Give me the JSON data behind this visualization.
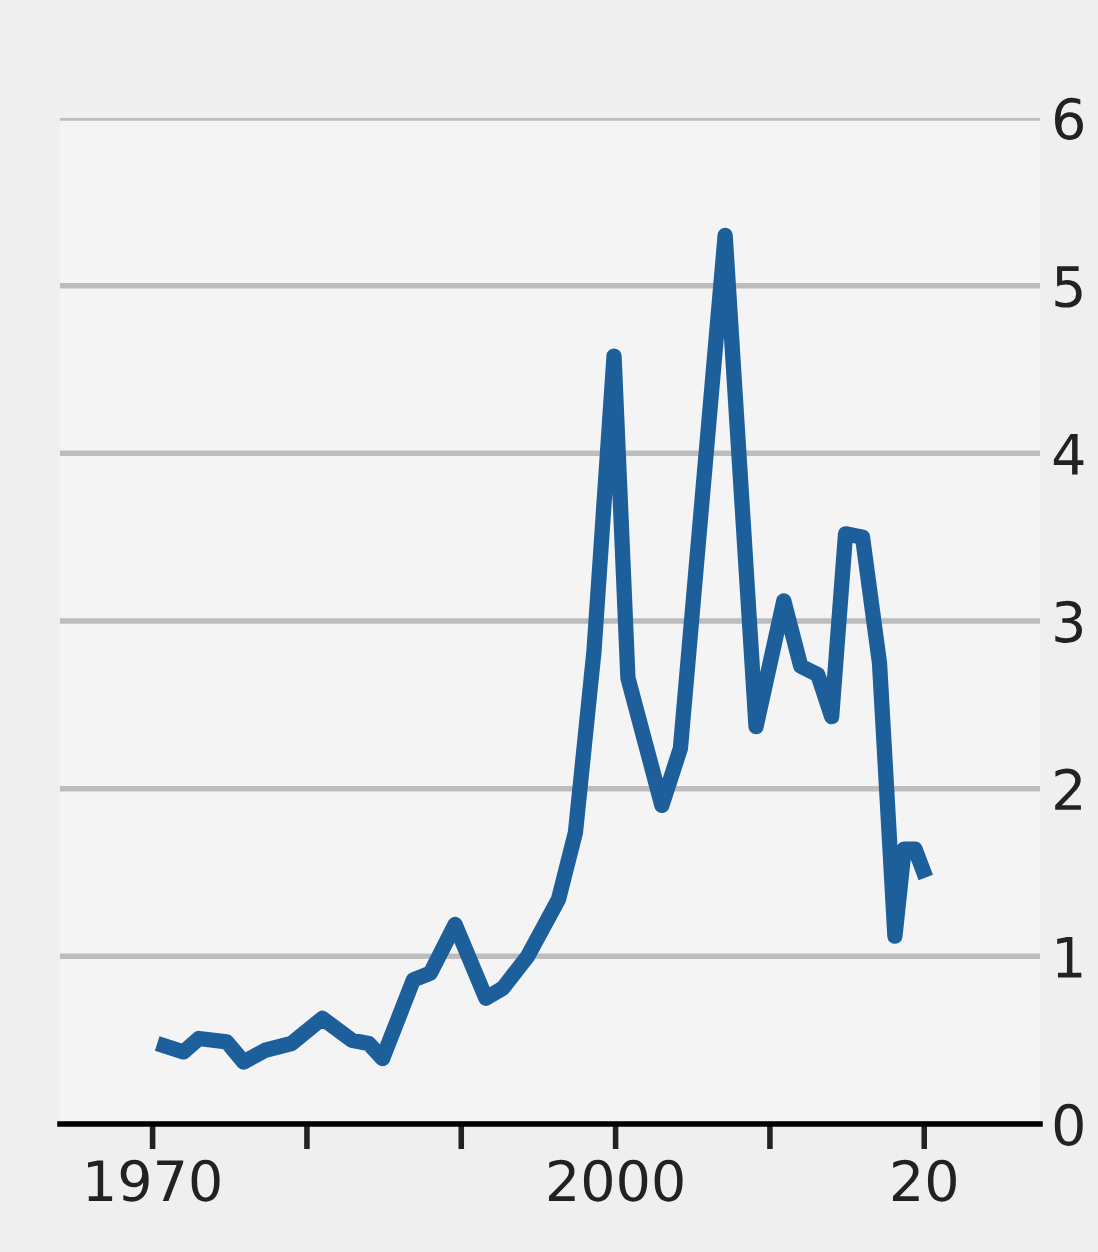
{
  "chart_data": {
    "type": "line",
    "series": [
      {
        "color": "#1d5f9b",
        "x": [
          1970.3,
          1972,
          1973,
          1974.8,
          1975.9,
          1977.3,
          1979,
          1981,
          1982.9,
          1984,
          1984.9,
          1986.9,
          1988,
          1989.6,
          1991.6,
          1992.7,
          1994.3,
          1996.3,
          1997.4,
          1998.6,
          1999.9,
          2000.8,
          2003,
          2004.2,
          2007.1,
          2009.1,
          2010.9,
          2012,
          2013.1,
          2014,
          2014.9,
          2016,
          2017.1,
          2018.1,
          2018.7,
          2019.4,
          2020.1
        ],
        "values": [
          0.48,
          0.43,
          0.51,
          0.49,
          0.37,
          0.44,
          0.48,
          0.63,
          0.5,
          0.48,
          0.39,
          0.86,
          0.9,
          1.19,
          0.75,
          0.81,
          1.0,
          1.34,
          1.74,
          2.82,
          4.58,
          2.66,
          1.9,
          2.24,
          5.3,
          2.37,
          3.12,
          2.73,
          2.68,
          2.43,
          3.52,
          3.5,
          2.75,
          1.12,
          1.64,
          1.64,
          1.47
        ]
      }
    ],
    "xlim": [
      1964,
      2027.5
    ],
    "xticks": [
      1970,
      {
        "value": 1980,
        "label": null
      },
      {
        "value": 1990,
        "label": null
      },
      2000,
      {
        "value": 2010,
        "label": null
      },
      {
        "value": 2020,
        "label": "20"
      }
    ],
    "ylim": [
      0,
      6
    ],
    "yticks": [
      0,
      1,
      2,
      3,
      4,
      5,
      6
    ],
    "grid": "y",
    "marker": "none",
    "line_style": "solid"
  }
}
